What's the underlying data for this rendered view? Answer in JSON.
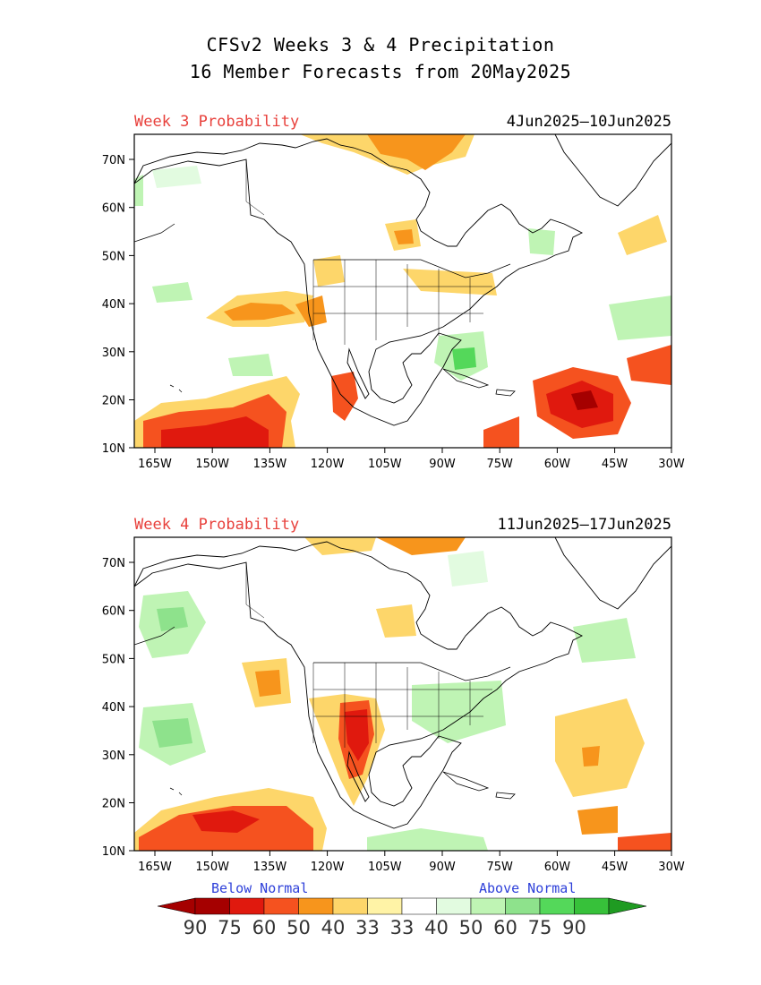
{
  "title_line1": "CFSv2 Weeks 3 & 4 Precipitation",
  "title_line2": "16 Member Forecasts from 20May2025",
  "panels": [
    {
      "label": "Week 3 Probability",
      "dates": "4Jun2025—10Jun2025"
    },
    {
      "label": "Week 4 Probability",
      "dates": "11Jun2025—17Jun2025"
    }
  ],
  "lat_ticks": [
    "70N",
    "60N",
    "50N",
    "40N",
    "30N",
    "20N",
    "10N"
  ],
  "lon_ticks": [
    "165W",
    "150W",
    "135W",
    "120W",
    "105W",
    "90W",
    "75W",
    "60W",
    "45W",
    "30W"
  ],
  "colorbar": {
    "below_label": "Below Normal",
    "above_label": "Above Normal",
    "numbers": [
      "90",
      "75",
      "60",
      "50",
      "40",
      "33",
      "33",
      "40",
      "50",
      "60",
      "75",
      "90"
    ],
    "colors": [
      "#a50000",
      "#e0190e",
      "#f5521f",
      "#f7951c",
      "#fdd66a",
      "#fff3a6",
      "#ffffff",
      "#e2fbe0",
      "#bff4b4",
      "#8ee28c",
      "#54d85a",
      "#37c13a"
    ],
    "end_left": "#a50000",
    "end_right": "#1f9b22"
  }
}
